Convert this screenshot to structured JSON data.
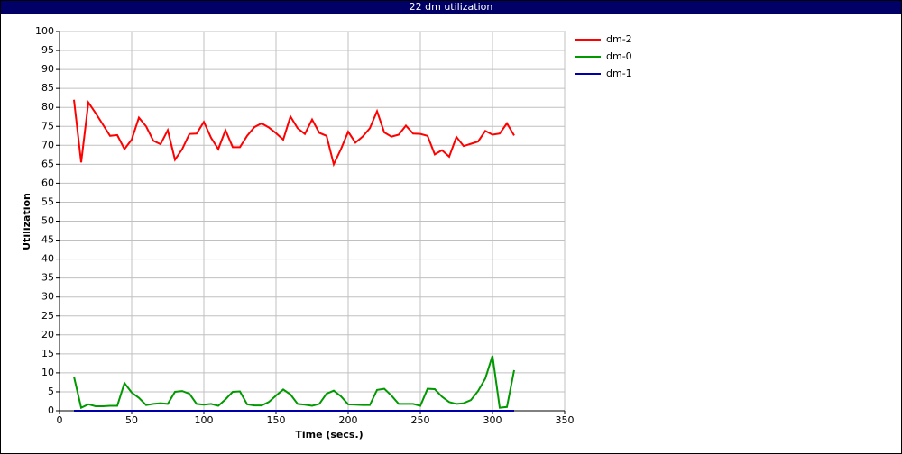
{
  "chart_data": {
    "type": "line",
    "title": "22 dm utilization",
    "xlabel": "Time (secs.)",
    "ylabel": "Utilization",
    "x": [
      10,
      15,
      20,
      25,
      30,
      35,
      40,
      45,
      50,
      55,
      60,
      65,
      70,
      75,
      80,
      85,
      90,
      95,
      100,
      105,
      110,
      115,
      120,
      125,
      130,
      135,
      140,
      145,
      150,
      155,
      160,
      165,
      170,
      175,
      180,
      185,
      190,
      195,
      200,
      205,
      210,
      215,
      220,
      225,
      230,
      235,
      240,
      245,
      250,
      255,
      260,
      265,
      270,
      275,
      280,
      285,
      290,
      295,
      300,
      305,
      310,
      315
    ],
    "series": [
      {
        "name": "dm-2",
        "color": "#ff0000",
        "values": [
          82,
          65.5,
          81.3,
          78.5,
          75.5,
          72.5,
          72.7,
          69,
          71.5,
          77.3,
          75,
          71.2,
          70.3,
          74,
          66.2,
          69,
          73,
          73.1,
          76.2,
          72,
          69,
          74,
          69.5,
          69.5,
          72.5,
          74.8,
          75.8,
          74.7,
          73.2,
          71.5,
          77.6,
          74.5,
          73,
          76.8,
          73.3,
          72.5,
          65,
          69,
          73.6,
          70.7,
          72.3,
          74.5,
          79,
          73.4,
          72.3,
          72.8,
          75.2,
          73.1,
          73,
          72.5,
          67.6,
          68.7,
          67,
          72.2,
          69.8,
          70.4,
          71,
          73.8,
          72.8,
          73.1,
          75.8,
          72.6
        ]
      },
      {
        "name": "dm-0",
        "color": "#009900",
        "values": [
          9,
          0.8,
          1.7,
          1.2,
          1.2,
          1.3,
          1.3,
          7.3,
          4.8,
          3.4,
          1.5,
          1.8,
          2,
          1.8,
          5,
          5.2,
          4.5,
          1.8,
          1.6,
          1.8,
          1.3,
          3,
          5,
          5.1,
          1.7,
          1.4,
          1.4,
          2.3,
          4,
          5.6,
          4.3,
          1.8,
          1.6,
          1.3,
          1.8,
          4.5,
          5.3,
          3.8,
          1.7,
          1.6,
          1.5,
          1.5,
          5.5,
          5.8,
          4,
          1.8,
          1.8,
          1.8,
          1.3,
          5.8,
          5.7,
          3.7,
          2.3,
          1.8,
          2,
          2.8,
          5.2,
          8.5,
          14.5,
          0.8,
          1,
          10.7
        ]
      },
      {
        "name": "dm-1",
        "color": "#0000aa",
        "values": [
          0,
          0,
          0,
          0,
          0,
          0,
          0,
          0,
          0,
          0,
          0,
          0,
          0,
          0,
          0,
          0,
          0,
          0,
          0,
          0,
          0,
          0,
          0,
          0,
          0,
          0,
          0,
          0,
          0,
          0,
          0,
          0,
          0,
          0,
          0,
          0,
          0,
          0,
          0,
          0,
          0,
          0,
          0,
          0,
          0,
          0,
          0,
          0,
          0,
          0,
          0,
          0,
          0,
          0,
          0,
          0,
          0,
          0,
          0,
          0,
          0,
          0
        ]
      }
    ],
    "xlim": [
      0,
      350
    ],
    "xticks": [
      0,
      50,
      100,
      150,
      200,
      250,
      300,
      350
    ],
    "ylim": [
      0,
      100
    ],
    "yticks": [
      0,
      5,
      10,
      15,
      20,
      25,
      30,
      35,
      40,
      45,
      50,
      55,
      60,
      65,
      70,
      75,
      80,
      85,
      90,
      95,
      100
    ],
    "grid": true,
    "legend": "right"
  }
}
